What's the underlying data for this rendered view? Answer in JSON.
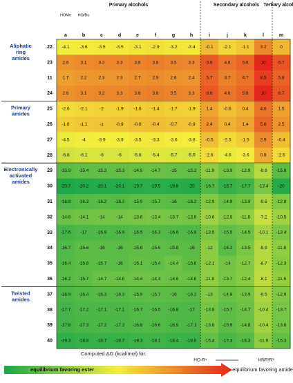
{
  "chart_data": {
    "type": "heatmap",
    "column_groups": [
      {
        "label": "Primary alcohols",
        "columns": [
          "a",
          "b",
          "c",
          "d",
          "e",
          "f",
          "g",
          "h"
        ]
      },
      {
        "label": "Secondary alcohols",
        "columns": [
          "i",
          "j",
          "k",
          "l"
        ]
      },
      {
        "label": "Tertiary alcohol",
        "columns": [
          "m"
        ]
      }
    ],
    "column_headers": [
      "HOMe",
      "HO∕∕Bu"
    ],
    "row_groups": [
      {
        "label": "Aliphatic ring amides",
        "rows": [
          {
            "id": "22",
            "values": [
              -4.1,
              -3.6,
              -3.5,
              -3.5,
              -3.1,
              -2.9,
              -3.2,
              -3.4,
              -0.1,
              -2.1,
              -1.1,
              3.2,
              0.0
            ]
          },
          {
            "id": "23",
            "values": [
              2.6,
              3.1,
              3.2,
              3.3,
              3.6,
              3.8,
              3.5,
              3.3,
              6.6,
              4.6,
              5.6,
              10.0,
              6.7
            ]
          },
          {
            "id": "11",
            "values": [
              1.7,
              2.2,
              2.3,
              2.3,
              2.7,
              2.9,
              2.6,
              2.4,
              5.7,
              3.7,
              4.7,
              8.5,
              5.8
            ]
          },
          {
            "id": "24",
            "values": [
              2.6,
              3.1,
              3.2,
              3.3,
              3.6,
              3.8,
              3.5,
              3.3,
              6.6,
              4.6,
              5.6,
              10.0,
              6.7
            ]
          }
        ]
      },
      {
        "label": "Primary amides",
        "rows": [
          {
            "id": "25",
            "values": [
              -2.6,
              -2.1,
              -2.0,
              -1.9,
              -1.6,
              -1.4,
              -1.7,
              -1.9,
              1.4,
              -0.6,
              0.4,
              4.6,
              1.5
            ]
          },
          {
            "id": "26",
            "values": [
              -1.6,
              -1.1,
              -1.0,
              -0.9,
              -0.6,
              -0.4,
              -0.7,
              -0.9,
              2.4,
              0.4,
              1.4,
              5.6,
              2.5
            ]
          },
          {
            "id": "27",
            "values": [
              -4.5,
              -4.0,
              -3.9,
              -3.9,
              -3.5,
              -3.3,
              -3.6,
              -3.8,
              -0.5,
              -2.5,
              -1.5,
              2.9,
              -0.4
            ]
          },
          {
            "id": "28",
            "values": [
              -6.6,
              -6.1,
              -6.0,
              -6.0,
              -5.6,
              -5.4,
              -5.7,
              -5.9,
              -2.6,
              -4.6,
              -3.6,
              0.8,
              -2.5
            ]
          }
        ]
      },
      {
        "label": "Electronically activated amides",
        "rows": [
          {
            "id": "29",
            "values": [
              -15.9,
              -15.4,
              -15.3,
              -15.3,
              -14.9,
              -14.7,
              -15.0,
              -15.2,
              -11.9,
              -13.9,
              -12.9,
              -8.6,
              -15.8
            ]
          },
          {
            "id": "30",
            "values": [
              -20.7,
              -20.2,
              -20.1,
              -20.1,
              -19.7,
              -19.5,
              -19.8,
              -20.0,
              -16.7,
              -18.7,
              -17.7,
              -13.4,
              -20.0
            ]
          },
          {
            "id": "31",
            "values": [
              -16.8,
              -16.3,
              -16.2,
              -16.3,
              -15.9,
              -15.7,
              -16.0,
              -16.2,
              -12.9,
              -14.9,
              -13.9,
              -9.6,
              -12.8
            ]
          },
          {
            "id": "32",
            "values": [
              -14.6,
              -14.1,
              -14.0,
              -14.0,
              -13.6,
              -13.4,
              -13.7,
              -13.9,
              -10.6,
              -12.6,
              -11.6,
              -7.2,
              -10.5
            ]
          },
          {
            "id": "33",
            "values": [
              -17.6,
              -17.0,
              -16.9,
              -16.9,
              -16.5,
              -16.3,
              -16.6,
              -16.8,
              -13.5,
              -15.5,
              -14.5,
              -10.1,
              -13.4
            ]
          },
          {
            "id": "34",
            "values": [
              -16.7,
              -15.8,
              -16.0,
              -16.0,
              -15.6,
              -15.5,
              -15.8,
              -16.0,
              -12.0,
              -16.2,
              -13.5,
              -8.9,
              -11.8
            ]
          },
          {
            "id": "35",
            "values": [
              -16.4,
              -15.8,
              -15.7,
              -16.0,
              -15.1,
              -15.4,
              -14.4,
              -15.6,
              -12.1,
              -14.0,
              -12.7,
              -8.7,
              -12.3
            ]
          },
          {
            "id": "36",
            "values": [
              -16.2,
              -15.7,
              -14.7,
              -14.6,
              -14.4,
              -14.4,
              -14.6,
              -14.6,
              -11.8,
              -13.7,
              -12.4,
              -8.1,
              -11.5
            ]
          }
        ]
      },
      {
        "label": "Twisted amides",
        "rows": [
          {
            "id": "37",
            "values": [
              -16.9,
              -16.4,
              -16.3,
              -16.3,
              -15.9,
              -15.7,
              -16.0,
              -16.2,
              -13.0,
              -14.9,
              -13.9,
              -9.5,
              -12.9
            ]
          },
          {
            "id": "38",
            "values": [
              -17.7,
              -17.2,
              -17.1,
              -17.1,
              -16.7,
              -16.5,
              -16.8,
              -17.0,
              -13.8,
              -15.7,
              -14.7,
              -10.4,
              -13.7
            ]
          },
          {
            "id": "39",
            "values": [
              -17.8,
              -17.3,
              -17.2,
              -17.2,
              -16.8,
              -16.6,
              -16.9,
              -17.1,
              -13.8,
              -15.8,
              -14.8,
              -10.4,
              -13.8
            ]
          },
          {
            "id": "40",
            "values": [
              -19.3,
              -18.8,
              -18.7,
              -18.7,
              -18.3,
              -18.1,
              -18.4,
              -18.6,
              -15.4,
              -17.3,
              -16.3,
              -11.9,
              -15.3
            ]
          }
        ]
      }
    ],
    "color_scale": [
      "#1ea84a",
      "#f4ee3c",
      "#e4261c"
    ],
    "legend": {
      "caption": "Computed ΔG (kcal/mol) for:",
      "reactant": "HO-R⁴",
      "product": "HNR²R³",
      "low": "equilibrium favoring ester",
      "high": "equilibrium favoring amide"
    }
  }
}
